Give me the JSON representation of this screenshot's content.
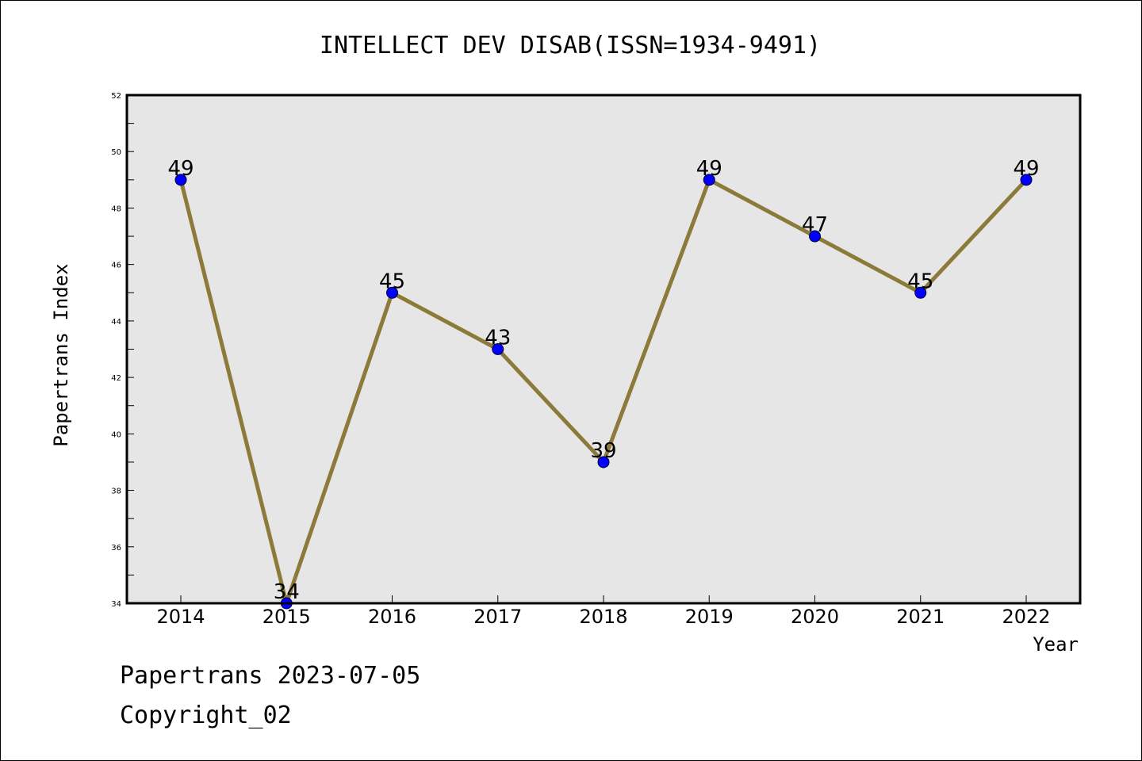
{
  "chart_data": {
    "type": "line",
    "title": "INTELLECT DEV DISAB(ISSN=1934-9491)",
    "xlabel": "Year",
    "ylabel": "Papertrans Index",
    "categories": [
      "2014",
      "2015",
      "2016",
      "2017",
      "2018",
      "2019",
      "2020",
      "2021",
      "2022"
    ],
    "series": [
      {
        "values": [
          49,
          34,
          45,
          43,
          39,
          49,
          47,
          45,
          49
        ]
      }
    ],
    "data_labels": [
      "49",
      "34",
      "45",
      "43",
      "39",
      "49",
      "47",
      "45",
      "49"
    ],
    "ylim": [
      34,
      52
    ],
    "yticks": [
      "34",
      "36",
      "38",
      "40",
      "42",
      "44",
      "46",
      "48",
      "50",
      "52"
    ],
    "grid": false,
    "plot_background": "#e6e6e6",
    "line_color": "#8b7a3a",
    "marker_color": "#0000ff"
  },
  "footer": {
    "line1": "Papertrans 2023-07-05",
    "line2": "Copyright_02"
  }
}
